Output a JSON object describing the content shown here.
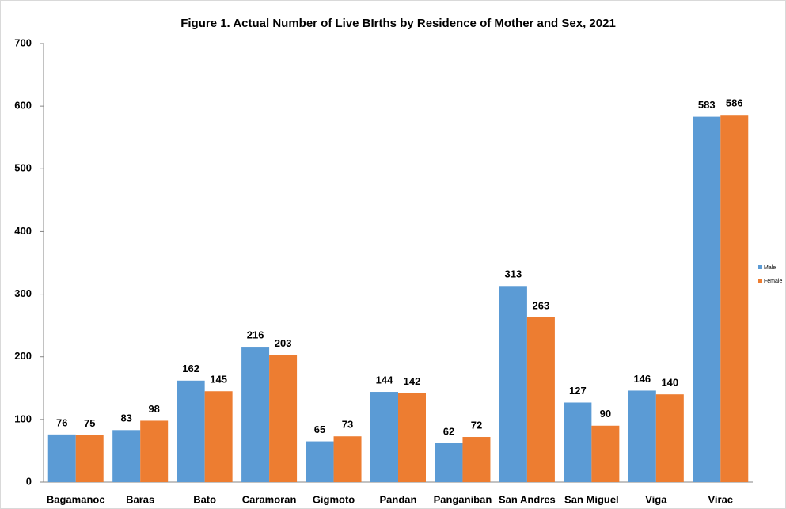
{
  "chart_data": {
    "type": "bar",
    "title": "Figure 1. Actual Number of Live BIrths by Residence of Mother and Sex, 2021",
    "categories": [
      "Bagamanoc",
      "Baras",
      "Bato",
      "Caramoran",
      "Gigmoto",
      "Pandan",
      "Panganiban",
      "San Andres",
      "San Miguel",
      "Viga",
      "Virac"
    ],
    "series": [
      {
        "name": "Male",
        "color": "#5b9bd5",
        "values": [
          76,
          83,
          162,
          216,
          65,
          144,
          62,
          313,
          127,
          146,
          583
        ]
      },
      {
        "name": "Female",
        "color": "#ed7d31",
        "values": [
          75,
          98,
          145,
          203,
          73,
          142,
          72,
          263,
          90,
          140,
          586
        ]
      }
    ],
    "ylim": [
      0,
      700
    ],
    "yticks": [
      0,
      100,
      200,
      300,
      400,
      500,
      600,
      700
    ],
    "grid": false,
    "legend": "right"
  }
}
